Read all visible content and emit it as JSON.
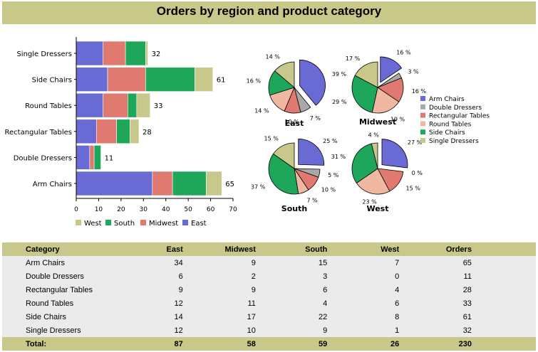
{
  "title": "Orders by region and product category",
  "colors": {
    "East": "#6a6ad4",
    "Midwest": "#e07a70",
    "South": "#1ea75a",
    "West": "#c8c88a",
    "Double Dressers": "#a8a8a8",
    "Rectangular Tables": "#e07a70",
    "Round Tables": "#f0b8a0",
    "Arm Chairs": "#6a6ad4",
    "Side Chairs": "#1ea75a",
    "Single Dressers": "#c8c88a"
  },
  "chart_data": [
    {
      "type": "bar",
      "orientation": "horizontal",
      "stacked": true,
      "categories": [
        "Single Dressers",
        "Side Chairs",
        "Round Tables",
        "Rectangular Tables",
        "Double Dressers",
        "Arm Chairs"
      ],
      "series": [
        {
          "name": "East",
          "values": [
            12,
            14,
            12,
            9,
            6,
            34
          ]
        },
        {
          "name": "Midwest",
          "values": [
            10,
            17,
            11,
            9,
            2,
            9
          ]
        },
        {
          "name": "South",
          "values": [
            9,
            22,
            4,
            6,
            3,
            15
          ]
        },
        {
          "name": "West",
          "values": [
            1,
            8,
            6,
            4,
            0,
            7
          ]
        }
      ],
      "totals": [
        32,
        61,
        33,
        28,
        11,
        65
      ],
      "xlim": [
        0,
        70
      ],
      "xticks": [
        0,
        10,
        20,
        30,
        40,
        50,
        60,
        70
      ],
      "legend": {
        "placement": "bottom",
        "entries": [
          "West",
          "South",
          "Midwest",
          "East"
        ]
      },
      "grid": false
    },
    {
      "type": "pie",
      "exploded_slice": "Arm Chairs",
      "legend": {
        "placement": "right",
        "entries": [
          "Arm Chairs",
          "Double Dressers",
          "Rectangular Tables",
          "Round Tables",
          "Side Chairs",
          "Single Dressers"
        ]
      },
      "pies": [
        {
          "name": "East",
          "slices": [
            {
              "label": "Arm Chairs",
              "value": 34,
              "pct": "39 %"
            },
            {
              "label": "Double Dressers",
              "value": 6,
              "pct": "7 %"
            },
            {
              "label": "Rectangular Tables",
              "value": 9,
              "pct": "10 %"
            },
            {
              "label": "Round Tables",
              "value": 12,
              "pct": "14 %"
            },
            {
              "label": "Side Chairs",
              "value": 14,
              "pct": "16 %"
            },
            {
              "label": "Single Dressers",
              "value": 12,
              "pct": "14 %"
            }
          ]
        },
        {
          "name": "Midwest",
          "slices": [
            {
              "label": "Arm Chairs",
              "value": 9,
              "pct": "16 %"
            },
            {
              "label": "Double Dressers",
              "value": 2,
              "pct": "3 %"
            },
            {
              "label": "Rectangular Tables",
              "value": 9,
              "pct": "16 %"
            },
            {
              "label": "Round Tables",
              "value": 11,
              "pct": "19 %"
            },
            {
              "label": "Side Chairs",
              "value": 17,
              "pct": "29 %"
            },
            {
              "label": "Single Dressers",
              "value": 10,
              "pct": "17 %"
            }
          ]
        },
        {
          "name": "South",
          "slices": [
            {
              "label": "Arm Chairs",
              "value": 15,
              "pct": "25 %"
            },
            {
              "label": "Double Dressers",
              "value": 3,
              "pct": "5 %"
            },
            {
              "label": "Rectangular Tables",
              "value": 6,
              "pct": "10 %"
            },
            {
              "label": "Round Tables",
              "value": 4,
              "pct": "7 %"
            },
            {
              "label": "Side Chairs",
              "value": 22,
              "pct": "37 %"
            },
            {
              "label": "Single Dressers",
              "value": 9,
              "pct": "15 %"
            }
          ]
        },
        {
          "name": "West",
          "slices": [
            {
              "label": "Arm Chairs",
              "value": 7,
              "pct": "27 %"
            },
            {
              "label": "Double Dressers",
              "value": 0,
              "pct": "0 %"
            },
            {
              "label": "Rectangular Tables",
              "value": 4,
              "pct": "15 %"
            },
            {
              "label": "Round Tables",
              "value": 6,
              "pct": "23 %"
            },
            {
              "label": "Side Chairs",
              "value": 8,
              "pct": "31 %"
            },
            {
              "label": "Single Dressers",
              "value": 1,
              "pct": "4 %"
            }
          ]
        }
      ]
    },
    {
      "type": "table",
      "columns": [
        "Category",
        "East",
        "Midwest",
        "South",
        "West",
        "Orders"
      ],
      "rows": [
        [
          "Arm Chairs",
          "34",
          "9",
          "15",
          "7",
          "65"
        ],
        [
          "Double Dressers",
          "6",
          "2",
          "3",
          "0",
          "11"
        ],
        [
          "Rectangular Tables",
          "9",
          "9",
          "6",
          "4",
          "28"
        ],
        [
          "Round Tables",
          "12",
          "11",
          "4",
          "6",
          "33"
        ],
        [
          "Side Chairs",
          "14",
          "17",
          "22",
          "8",
          "61"
        ],
        [
          "Single Dressers",
          "12",
          "10",
          "9",
          "1",
          "32"
        ]
      ],
      "total": [
        "Total:",
        "87",
        "58",
        "59",
        "26",
        "230"
      ]
    }
  ]
}
